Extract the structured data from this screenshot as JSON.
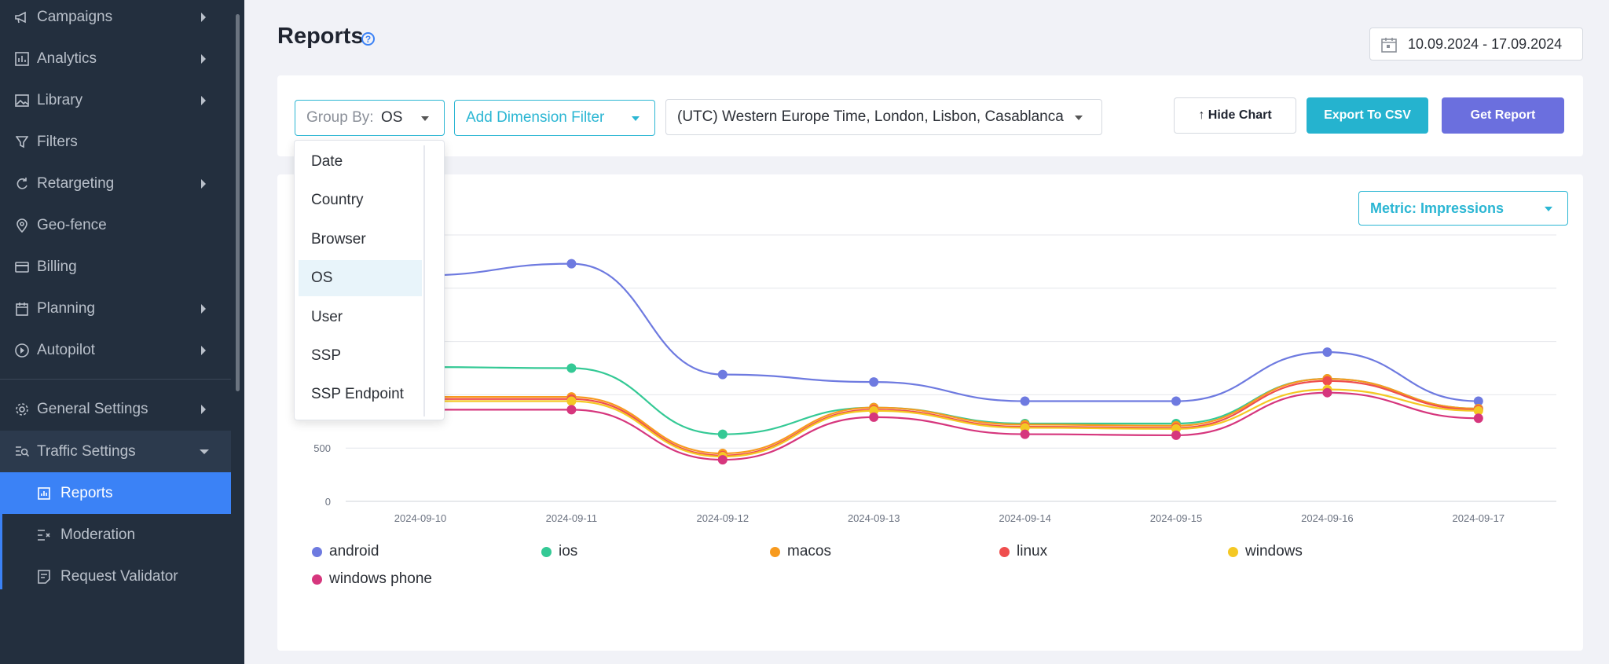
{
  "sidebar": {
    "items": [
      {
        "label": "Campaigns",
        "icon": "megaphone-icon",
        "chevron": true
      },
      {
        "label": "Analytics",
        "icon": "bar-chart-icon",
        "chevron": true
      },
      {
        "label": "Library",
        "icon": "image-icon",
        "chevron": true
      },
      {
        "label": "Filters",
        "icon": "filter-icon",
        "chevron": false
      },
      {
        "label": "Retargeting",
        "icon": "refresh-icon",
        "chevron": true
      },
      {
        "label": "Geo-fence",
        "icon": "map-pin-icon",
        "chevron": false
      },
      {
        "label": "Billing",
        "icon": "credit-card-icon",
        "chevron": false
      },
      {
        "label": "Planning",
        "icon": "calendar-icon",
        "chevron": true
      },
      {
        "label": "Autopilot",
        "icon": "play-circle-icon",
        "chevron": true
      },
      {
        "label": "General Settings",
        "icon": "gear-icon",
        "chevron": true
      },
      {
        "label": "Traffic Settings",
        "icon": "traffic-settings-icon",
        "chevron": true
      }
    ],
    "sub_items": [
      {
        "label": "Reports",
        "icon": "report-icon"
      },
      {
        "label": "Moderation",
        "icon": "moderation-icon"
      },
      {
        "label": "Request Validator",
        "icon": "validator-icon"
      }
    ]
  },
  "header": {
    "title": "Reports",
    "date_range": "10.09.2024 - 17.09.2024"
  },
  "filters": {
    "group_by_label": "Group By:",
    "group_by_value": "OS",
    "dimension_filter": "Add Dimension Filter",
    "timezone": "(UTC) Western Europe Time, London, Lisbon, Casablanca",
    "hide_chart": "↑ Hide Chart",
    "export": "Export To CSV",
    "get_report": "Get Report"
  },
  "group_by_options": [
    "Date",
    "Country",
    "Browser",
    "OS",
    "User",
    "SSP",
    "SSP Endpoint"
  ],
  "group_by_selected": "OS",
  "metric": "Metric: Impressions",
  "colors": {
    "accent": "#2bb6d3",
    "primary": "#6b6fde",
    "sidebar_active": "#3b82f6"
  },
  "chart_data": {
    "type": "line",
    "x": [
      "2024-09-10",
      "2024-09-11",
      "2024-09-12",
      "2024-09-13",
      "2024-09-14",
      "2024-09-15",
      "2024-09-16",
      "2024-09-17"
    ],
    "y_ticks": [
      0,
      500
    ],
    "ylim": [
      0,
      2500
    ],
    "series": [
      {
        "name": "android",
        "color": "#6e7ae0",
        "values": [
          2120,
          2230,
          1190,
          1120,
          940,
          940,
          1400,
          940
        ]
      },
      {
        "name": "ios",
        "color": "#34c995",
        "values": [
          1260,
          1250,
          630,
          880,
          730,
          730,
          1150,
          870
        ]
      },
      {
        "name": "macos",
        "color": "#f79a1e",
        "values": [
          980,
          980,
          450,
          880,
          720,
          710,
          1150,
          870
        ]
      },
      {
        "name": "linux",
        "color": "#ef4e4e",
        "values": [
          960,
          960,
          430,
          860,
          700,
          690,
          1130,
          860
        ]
      },
      {
        "name": "windows",
        "color": "#f4c824",
        "values": [
          940,
          940,
          420,
          850,
          690,
          680,
          1050,
          850
        ]
      },
      {
        "name": "windows phone",
        "color": "#d6367d",
        "values": [
          860,
          860,
          390,
          790,
          630,
          620,
          1020,
          780
        ]
      }
    ]
  }
}
